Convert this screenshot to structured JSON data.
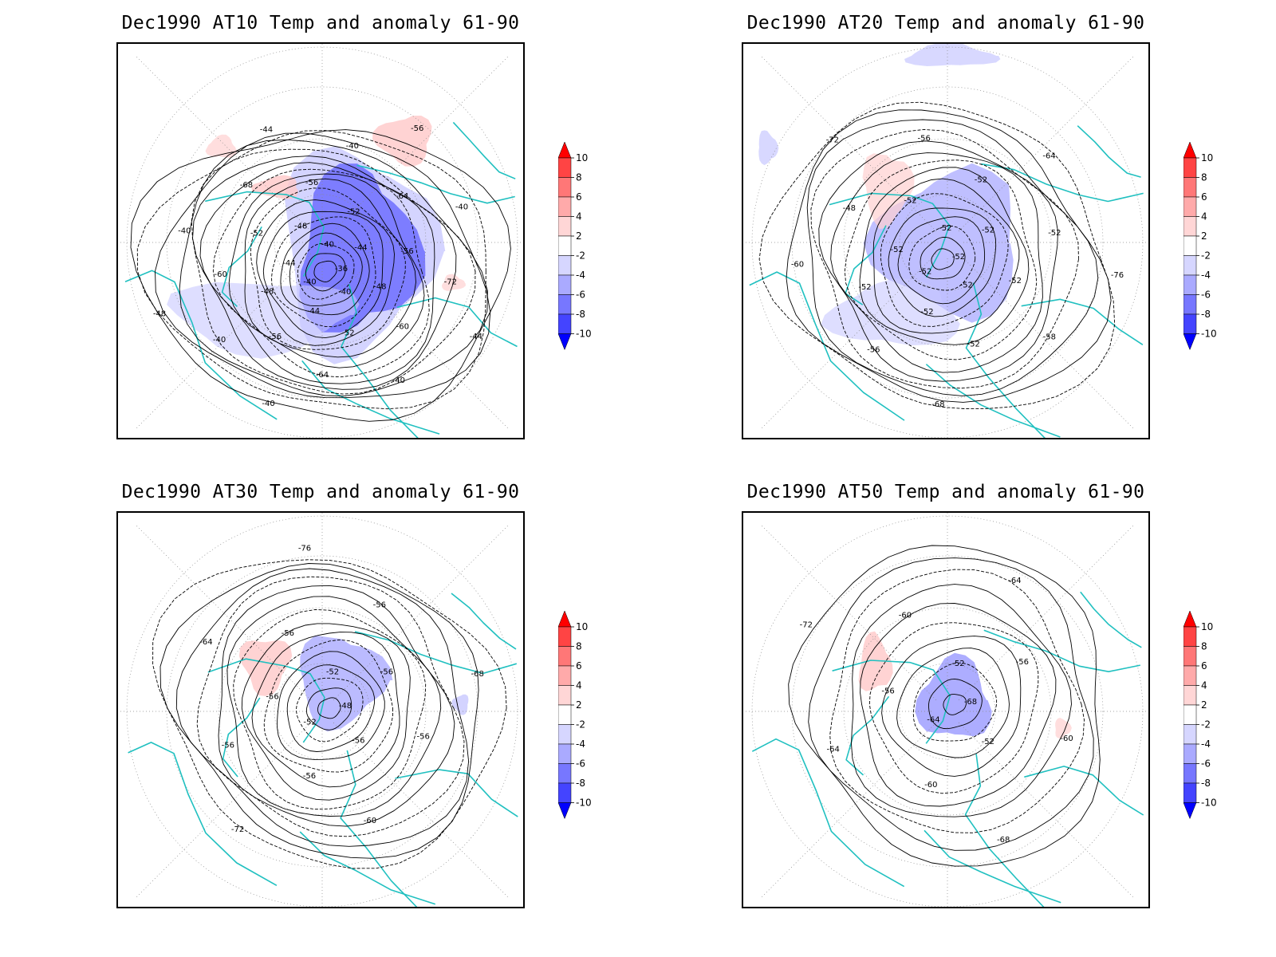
{
  "panels": [
    {
      "title": "Dec1990 AT10 Temp and anomaly 61-90",
      "contour_labels": [
        "-36",
        "-40",
        "-40",
        "-40",
        "-44",
        "-44",
        "-44",
        "-48",
        "-48",
        "-48",
        "-52",
        "-52",
        "-52",
        "-56",
        "-56",
        "-56",
        "-60",
        "-60",
        "-64",
        "-64",
        "-68",
        "-72",
        "-40",
        "-40",
        "-40",
        "-40",
        "-40",
        "-40",
        "-44",
        "-44",
        "-48",
        "-56"
      ],
      "contour_levels": {
        "min": -72,
        "max": -36,
        "step": 2
      },
      "center_min": -72,
      "anomaly_regions": [
        {
          "sign": "negative",
          "magnitude": 10,
          "where": "central Arctic / Scandinavia"
        },
        {
          "sign": "negative",
          "magnitude": 4,
          "where": "Siberia to N Pacific"
        },
        {
          "sign": "positive",
          "magnitude": 3,
          "where": "Canada / Alaska"
        },
        {
          "sign": "positive",
          "magnitude": 3,
          "where": "N Africa"
        }
      ]
    },
    {
      "title": "Dec1990 AT20 Temp and anomaly 61-90",
      "contour_labels": [
        "-52",
        "-52",
        "-52",
        "-52",
        "-52",
        "-52",
        "-52",
        "-52",
        "-52",
        "-52",
        "-52",
        "-52",
        "-48",
        "-52",
        "-56",
        "-56",
        "-58",
        "-60",
        "-64",
        "-68",
        "-72",
        "-76"
      ],
      "contour_levels": {
        "min": -76,
        "max": -48,
        "step": 2
      },
      "center_min": -76,
      "anomaly_regions": [
        {
          "sign": "negative",
          "magnitude": 4,
          "where": "central Arctic / Siberia"
        },
        {
          "sign": "negative",
          "magnitude": 2,
          "where": "N Africa edge"
        },
        {
          "sign": "positive",
          "magnitude": 3,
          "where": "Canada"
        }
      ]
    },
    {
      "title": "Dec1990 AT30 Temp and anomaly 61-90",
      "contour_labels": [
        "-48",
        "-52",
        "-52",
        "-56",
        "-56",
        "-56",
        "-56",
        "-56",
        "-56",
        "-56",
        "-56",
        "-60",
        "-64",
        "-68",
        "-72",
        "-76"
      ],
      "contour_levels": {
        "min": -76,
        "max": -48,
        "step": 2
      },
      "center_min": -76,
      "anomaly_regions": [
        {
          "sign": "negative",
          "magnitude": 4,
          "where": "central Arctic"
        },
        {
          "sign": "positive",
          "magnitude": 3,
          "where": "Canada"
        },
        {
          "sign": "negative",
          "magnitude": 2,
          "where": "Asia"
        }
      ]
    },
    {
      "title": "Dec1990 AT50 Temp and anomaly 61-90",
      "contour_labels": [
        "-68",
        "-64",
        "-52",
        "-52",
        "-56",
        "-56",
        "-60",
        "-60",
        "-60",
        "-64",
        "-64",
        "-68",
        "-72"
      ],
      "contour_levels": {
        "min": -72,
        "max": -52,
        "step": 2
      },
      "center_min": -72,
      "anomaly_regions": [
        {
          "sign": "negative",
          "magnitude": 5,
          "where": "central Arctic"
        },
        {
          "sign": "positive",
          "magnitude": 3,
          "where": "Canada"
        },
        {
          "sign": "positive",
          "magnitude": 2,
          "where": "N Africa"
        }
      ]
    }
  ],
  "colorbar": {
    "labels": [
      "10",
      "8",
      "6",
      "4",
      "2",
      "-2",
      "-4",
      "-6",
      "-8",
      "-10"
    ],
    "colors": [
      "#ff0000",
      "#ff4444",
      "#ff7777",
      "#ffaaaa",
      "#ffd6d6",
      "#ffffff",
      "#d6d6ff",
      "#aaaaff",
      "#7777ff",
      "#4444ff",
      "#0000ff"
    ]
  },
  "style": {
    "coastline_color": "#20c0c0",
    "contour_color": "#000000",
    "grid_color": "#888888"
  }
}
